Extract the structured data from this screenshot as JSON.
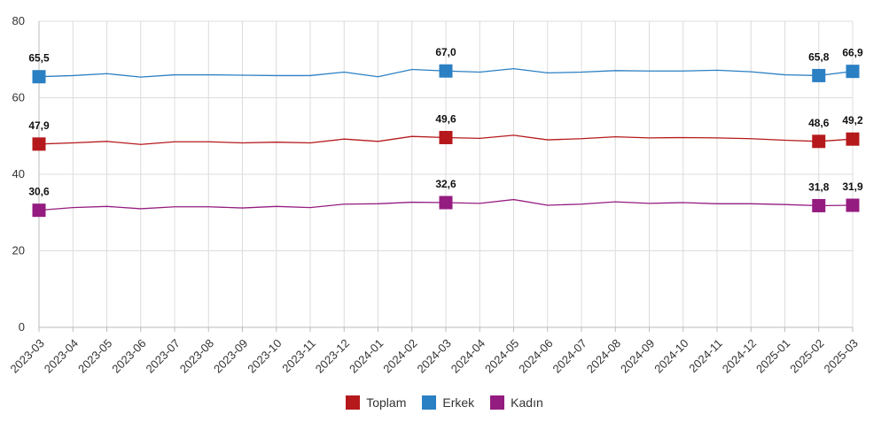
{
  "chart_data": {
    "type": "line",
    "x": [
      "2023-03",
      "2023-04",
      "2023-05",
      "2023-06",
      "2023-07",
      "2023-08",
      "2023-09",
      "2023-10",
      "2023-11",
      "2023-12",
      "2024-01",
      "2024-02",
      "2024-03",
      "2024-04",
      "2024-05",
      "2024-06",
      "2024-07",
      "2024-08",
      "2024-09",
      "2024-10",
      "2024-11",
      "2024-12",
      "2025-01",
      "2025-02",
      "2025-03"
    ],
    "ylim": [
      0,
      80
    ],
    "yticks": [
      0,
      20,
      40,
      60,
      80
    ],
    "grid": true,
    "legend_position": "bottom-center",
    "series": [
      {
        "name": "Toplam",
        "color": "#b5191c",
        "values": [
          47.9,
          48.2,
          48.6,
          47.8,
          48.5,
          48.5,
          48.2,
          48.4,
          48.2,
          49.2,
          48.6,
          49.9,
          49.6,
          49.4,
          50.2,
          49.0,
          49.3,
          49.8,
          49.5,
          49.6,
          49.5,
          49.3,
          48.9,
          48.6,
          49.2
        ],
        "labeled_points": [
          {
            "x": "2023-03",
            "label": "47,9"
          },
          {
            "x": "2024-03",
            "label": "49,6"
          },
          {
            "x": "2025-02",
            "label": "48,6"
          },
          {
            "x": "2025-03",
            "label": "49,2"
          }
        ]
      },
      {
        "name": "Erkek",
        "color": "#2b7fc3",
        "values": [
          65.5,
          65.8,
          66.3,
          65.4,
          66.0,
          66.0,
          65.9,
          65.8,
          65.8,
          66.7,
          65.5,
          67.4,
          67.0,
          66.7,
          67.6,
          66.5,
          66.7,
          67.1,
          67.0,
          67.0,
          67.2,
          66.8,
          66.0,
          65.8,
          66.9
        ],
        "labeled_points": [
          {
            "x": "2023-03",
            "label": "65,5"
          },
          {
            "x": "2024-03",
            "label": "67,0"
          },
          {
            "x": "2025-02",
            "label": "65,8"
          },
          {
            "x": "2025-03",
            "label": "66,9"
          }
        ]
      },
      {
        "name": "Kadın",
        "color": "#941c80",
        "values": [
          30.6,
          31.3,
          31.6,
          31.0,
          31.5,
          31.5,
          31.2,
          31.6,
          31.3,
          32.2,
          32.3,
          32.7,
          32.6,
          32.4,
          33.4,
          31.9,
          32.2,
          32.8,
          32.4,
          32.6,
          32.3,
          32.3,
          32.1,
          31.8,
          31.9
        ],
        "labeled_points": [
          {
            "x": "2023-03",
            "label": "30,6"
          },
          {
            "x": "2024-03",
            "label": "32,6"
          },
          {
            "x": "2025-02",
            "label": "31,8"
          },
          {
            "x": "2025-03",
            "label": "31,9"
          }
        ]
      }
    ]
  },
  "legend": {
    "items": [
      {
        "label": "Toplam",
        "color": "#b5191c"
      },
      {
        "label": "Erkek",
        "color": "#2b7fc3"
      },
      {
        "label": "Kadın",
        "color": "#941c80"
      }
    ]
  }
}
